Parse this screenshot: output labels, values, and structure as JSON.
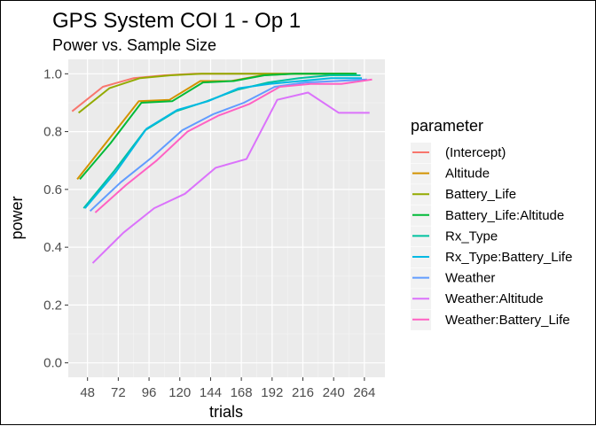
{
  "chart_data": {
    "type": "line",
    "title": "GPS System COI 1 - Op 1",
    "subtitle": "Power vs. Sample Size",
    "xlabel": "trials",
    "ylabel": "power",
    "xlim": [
      33,
      280
    ],
    "ylim": [
      -0.05,
      1.05
    ],
    "x_ticks": [
      48,
      72,
      96,
      120,
      144,
      168,
      192,
      216,
      240,
      264
    ],
    "y_ticks": [
      0.0,
      0.2,
      0.4,
      0.6,
      0.8,
      1.0
    ],
    "y_tick_labels": [
      "0.0",
      "0.2",
      "0.4",
      "0.6",
      "0.8",
      "1.0"
    ],
    "grid": true,
    "legend_title": "parameter",
    "legend_position": "right",
    "series": [
      {
        "name": "(Intercept)",
        "color": "#F8766D",
        "x": [
          36,
          60,
          84,
          108,
          132,
          156,
          180,
          204,
          228,
          252
        ],
        "y": [
          0.87,
          0.955,
          0.985,
          0.995,
          1.0,
          1.0,
          1.0,
          1.0,
          1.0,
          1.0
        ]
      },
      {
        "name": "Altitude",
        "color": "#D39200",
        "x": [
          40,
          64,
          88,
          112,
          136,
          160,
          184,
          208,
          232,
          256
        ],
        "y": [
          0.635,
          0.77,
          0.905,
          0.91,
          0.975,
          0.975,
          0.995,
          1.0,
          1.0,
          1.0
        ]
      },
      {
        "name": "Battery_Life",
        "color": "#93AA00",
        "x": [
          41,
          65,
          89,
          113,
          137,
          161,
          185,
          209,
          233,
          257
        ],
        "y": [
          0.865,
          0.95,
          0.985,
          0.995,
          1.0,
          1.0,
          1.0,
          1.0,
          1.0,
          1.0
        ]
      },
      {
        "name": "Battery_Life:Altitude",
        "color": "#00BA38",
        "x": [
          42,
          66,
          90,
          114,
          138,
          162,
          186,
          210,
          234,
          258
        ],
        "y": [
          0.635,
          0.76,
          0.9,
          0.905,
          0.97,
          0.975,
          0.995,
          1.0,
          1.0,
          1.0
        ]
      },
      {
        "name": "Rx_Type",
        "color": "#00C19F",
        "x": [
          45,
          69,
          93,
          117,
          141,
          165,
          189,
          213,
          237,
          261
        ],
        "y": [
          0.535,
          0.665,
          0.805,
          0.87,
          0.905,
          0.945,
          0.97,
          0.985,
          0.995,
          0.995
        ]
      },
      {
        "name": "Rx_Type:Battery_Life",
        "color": "#00B9E3",
        "x": [
          46,
          70,
          94,
          118,
          142,
          166,
          190,
          214,
          238,
          262
        ],
        "y": [
          0.535,
          0.66,
          0.81,
          0.875,
          0.905,
          0.95,
          0.965,
          0.975,
          0.985,
          0.985
        ]
      },
      {
        "name": "Weather",
        "color": "#619CFF",
        "x": [
          50,
          74,
          98,
          122,
          146,
          170,
          194,
          218,
          242,
          266
        ],
        "y": [
          0.525,
          0.625,
          0.71,
          0.805,
          0.86,
          0.9,
          0.955,
          0.97,
          0.975,
          0.98
        ]
      },
      {
        "name": "Weather:Altitude",
        "color": "#DB72FB",
        "x": [
          52,
          76,
          100,
          124,
          148,
          172,
          196,
          220,
          244,
          268
        ],
        "y": [
          0.345,
          0.45,
          0.535,
          0.585,
          0.675,
          0.705,
          0.91,
          0.935,
          0.865,
          0.865
        ]
      },
      {
        "name": "Weather:Battery_Life",
        "color": "#FF61C3",
        "x": [
          54,
          78,
          102,
          126,
          150,
          174,
          198,
          222,
          246,
          270
        ],
        "y": [
          0.52,
          0.615,
          0.7,
          0.8,
          0.855,
          0.895,
          0.955,
          0.965,
          0.965,
          0.98
        ]
      }
    ]
  }
}
